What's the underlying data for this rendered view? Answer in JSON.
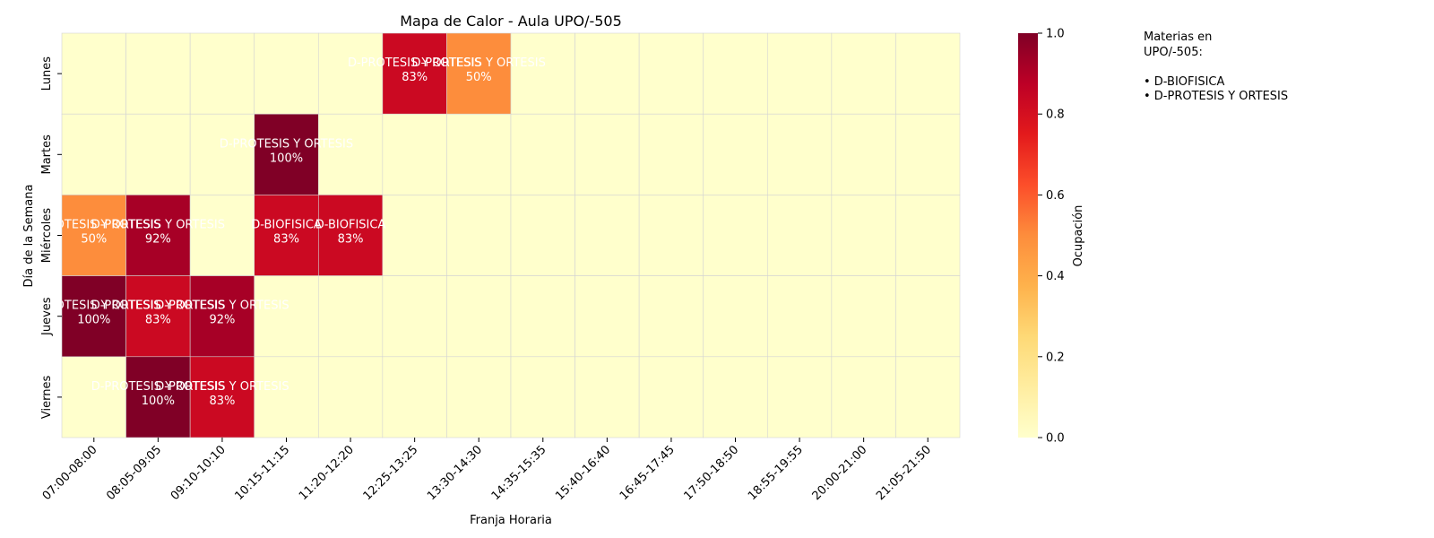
{
  "chart_data": {
    "type": "heatmap",
    "title": "Mapa de Calor - Aula UPO/-505",
    "xlabel": "Franja Horaria",
    "ylabel": "Día de la Semana",
    "colorbar_label": "Ocupación",
    "colorbar_ticks": [
      "0.0",
      "0.2",
      "0.4",
      "0.6",
      "0.8",
      "1.0"
    ],
    "vmin": 0,
    "vmax": 1,
    "colormap": "YlOrRd",
    "colormap_stops": [
      "#ffffcc",
      "#ffeda0",
      "#fed976",
      "#feb24c",
      "#fd8d3c",
      "#fc4e2a",
      "#e31a1c",
      "#bd0026",
      "#800026"
    ],
    "grid_color": "#d3d3d3",
    "x": [
      "07:00-08:00",
      "08:05-09:05",
      "09:10-10:10",
      "10:15-11:15",
      "11:20-12:20",
      "12:25-13:25",
      "13:30-14:30",
      "14:35-15:35",
      "15:40-16:40",
      "16:45-17:45",
      "17:50-18:50",
      "18:55-19:55",
      "20:00-21:00",
      "21:05-21:50"
    ],
    "y": [
      "Lunes",
      "Martes",
      "Miércoles",
      "Jueves",
      "Viernes"
    ],
    "values": [
      [
        0,
        0,
        0,
        0,
        0,
        0.83,
        0.5,
        0,
        0,
        0,
        0,
        0,
        0,
        0
      ],
      [
        0,
        0,
        0,
        1.0,
        0,
        0,
        0,
        0,
        0,
        0,
        0,
        0,
        0,
        0
      ],
      [
        0.5,
        0.92,
        0,
        0.83,
        0.83,
        0,
        0,
        0,
        0,
        0,
        0,
        0,
        0,
        0
      ],
      [
        1.0,
        0.83,
        0.92,
        0,
        0,
        0,
        0,
        0,
        0,
        0,
        0,
        0,
        0,
        0
      ],
      [
        0,
        1.0,
        0.83,
        0,
        0,
        0,
        0,
        0,
        0,
        0,
        0,
        0,
        0,
        0
      ]
    ],
    "annotations": [
      {
        "row": 0,
        "col": 5,
        "subject": "D-PROTESIS Y ORTESIS",
        "pct": "83%"
      },
      {
        "row": 0,
        "col": 6,
        "subject": "D-PROTESIS Y ORTESIS",
        "pct": "50%"
      },
      {
        "row": 1,
        "col": 3,
        "subject": "D-PROTESIS Y ORTESIS",
        "pct": "100%"
      },
      {
        "row": 2,
        "col": 0,
        "subject": "D-PROTESIS Y ORTESIS",
        "pct": "50%"
      },
      {
        "row": 2,
        "col": 1,
        "subject": "D-PROTESIS Y ORTESIS",
        "pct": "92%"
      },
      {
        "row": 2,
        "col": 3,
        "subject": "D-BIOFISICA",
        "pct": "83%"
      },
      {
        "row": 2,
        "col": 4,
        "subject": "D-BIOFISICA",
        "pct": "83%"
      },
      {
        "row": 3,
        "col": 0,
        "subject": "D-PROTESIS Y ORTESIS",
        "pct": "100%"
      },
      {
        "row": 3,
        "col": 1,
        "subject": "D-PROTESIS Y ORTESIS",
        "pct": "83%"
      },
      {
        "row": 3,
        "col": 2,
        "subject": "D-PROTESIS Y ORTESIS",
        "pct": "92%"
      },
      {
        "row": 4,
        "col": 1,
        "subject": "D-PROTESIS Y ORTESIS",
        "pct": "100%"
      },
      {
        "row": 4,
        "col": 2,
        "subject": "D-PROTESIS Y ORTESIS",
        "pct": "83%"
      }
    ]
  },
  "legend_note": {
    "lines": [
      "Materias en",
      "UPO/-505:",
      "",
      "• D-BIOFISICA",
      "• D-PROTESIS Y ORTESIS"
    ]
  }
}
